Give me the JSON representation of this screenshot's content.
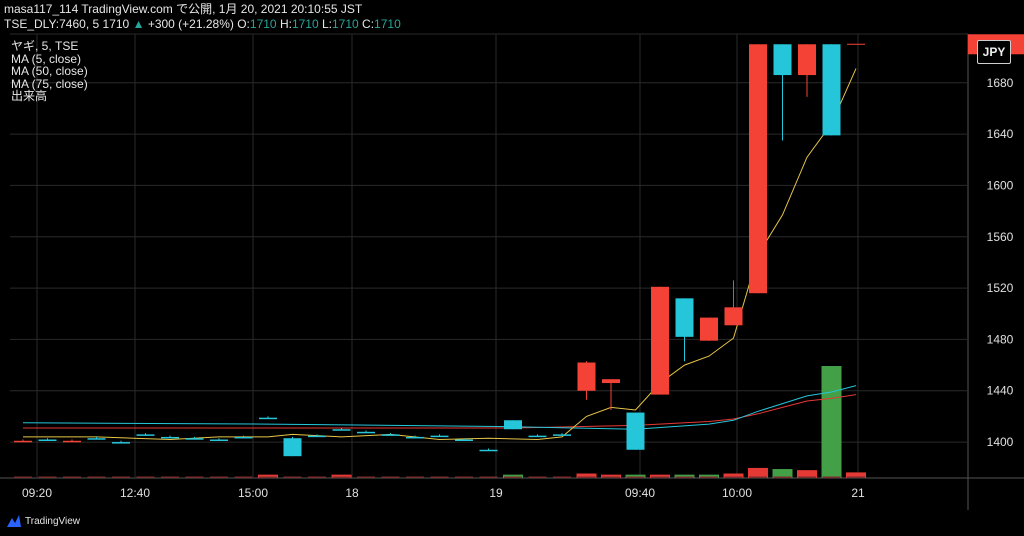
{
  "header": {
    "line1_user_site": "masa117_114 TradingView.com で公開, 1月 20, 2021 20:10:55 JST",
    "symbol_info": "TSE_DLY:7460, 5",
    "last_price": "1710",
    "change_text": "+300 (+21.28%)",
    "o_label": "O:",
    "o_value": "1710",
    "h_label": "H:",
    "h_value": "1710",
    "l_label": "L:",
    "l_value": "1710",
    "c_label": "C:",
    "c_value": "1710"
  },
  "legend": {
    "symbol_line": "ヤギ, 5, TSE",
    "ma5": "MA (5, close)",
    "ma50": "MA (50, close)",
    "ma75": "MA (75, close)",
    "volume": "出来高"
  },
  "currency_badge": "JPY",
  "footer_brand": "TradingView",
  "colors": {
    "up_candle": "#26c6da",
    "down_candle": "#f44336",
    "ma5": "#e8c547",
    "ma50": "#26c6da",
    "ma75": "#e53935",
    "volume_up": "#43a047",
    "volume_down": "#e53935",
    "grid": "#2a2a2a"
  },
  "chart_data": {
    "type": "candlestick",
    "ylim": [
      1372,
      1718
    ],
    "y_ticks": [
      1400,
      1440,
      1480,
      1520,
      1560,
      1600,
      1640,
      1680
    ],
    "x_tick_labels": [
      "09:20",
      "12:40",
      "15:00",
      "18",
      "19",
      "09:40",
      "10:00",
      "21"
    ],
    "candles": [
      {
        "t": 0,
        "o": 1401,
        "h": 1402,
        "l": 1400,
        "c": 1400
      },
      {
        "t": 1,
        "o": 1402,
        "h": 1403,
        "l": 1401,
        "c": 1402
      },
      {
        "t": 2,
        "o": 1401,
        "h": 1402,
        "l": 1400,
        "c": 1400
      },
      {
        "t": 3,
        "o": 1403,
        "h": 1404,
        "l": 1402,
        "c": 1403
      },
      {
        "t": 4,
        "o": 1400,
        "h": 1401,
        "l": 1399,
        "c": 1400
      },
      {
        "t": 5,
        "o": 1406,
        "h": 1407,
        "l": 1405,
        "c": 1406
      },
      {
        "t": 6,
        "o": 1404,
        "h": 1405,
        "l": 1403,
        "c": 1404
      },
      {
        "t": 7,
        "o": 1403,
        "h": 1404,
        "l": 1402,
        "c": 1403
      },
      {
        "t": 8,
        "o": 1402,
        "h": 1403,
        "l": 1401,
        "c": 1402
      },
      {
        "t": 9,
        "o": 1404,
        "h": 1405,
        "l": 1403,
        "c": 1404
      },
      {
        "t": 10,
        "o": 1419,
        "h": 1420,
        "l": 1418,
        "c": 1419
      },
      {
        "t": 11,
        "o": 1389,
        "h": 1404,
        "l": 1389,
        "c": 1403
      },
      {
        "t": 12,
        "o": 1405,
        "h": 1406,
        "l": 1404,
        "c": 1405
      },
      {
        "t": 13,
        "o": 1410,
        "h": 1411,
        "l": 1409,
        "c": 1410
      },
      {
        "t": 14,
        "o": 1408,
        "h": 1409,
        "l": 1407,
        "c": 1408
      },
      {
        "t": 15,
        "o": 1406,
        "h": 1407,
        "l": 1405,
        "c": 1406
      },
      {
        "t": 16,
        "o": 1404,
        "h": 1405,
        "l": 1403,
        "c": 1404
      },
      {
        "t": 17,
        "o": 1405,
        "h": 1406,
        "l": 1404,
        "c": 1405
      },
      {
        "t": 18,
        "o": 1402,
        "h": 1403,
        "l": 1401,
        "c": 1402
      },
      {
        "t": 19,
        "o": 1394,
        "h": 1395,
        "l": 1393,
        "c": 1394
      },
      {
        "t": 20,
        "o": 1410,
        "h": 1417,
        "l": 1410,
        "c": 1417
      },
      {
        "t": 21,
        "o": 1405,
        "h": 1406,
        "l": 1404,
        "c": 1405
      },
      {
        "t": 22,
        "o": 1406,
        "h": 1407,
        "l": 1405,
        "c": 1406
      },
      {
        "t": 23,
        "o": 1462,
        "h": 1463,
        "l": 1433,
        "c": 1440
      },
      {
        "t": 24,
        "o": 1449,
        "h": 1449,
        "l": 1425,
        "c": 1446
      },
      {
        "t": 25,
        "o": 1394,
        "h": 1423,
        "l": 1394,
        "c": 1423
      },
      {
        "t": 26,
        "o": 1521,
        "h": 1521,
        "l": 1437,
        "c": 1437
      },
      {
        "t": 27,
        "o": 1482,
        "h": 1512,
        "l": 1463,
        "c": 1512
      },
      {
        "t": 28,
        "o": 1497,
        "h": 1497,
        "l": 1479,
        "c": 1479
      },
      {
        "t": 29,
        "o": 1505,
        "h": 1526,
        "l": 1491,
        "c": 1491
      },
      {
        "t": 30,
        "o": 1710,
        "h": 1710,
        "l": 1516,
        "c": 1516
      },
      {
        "t": 31,
        "o": 1686,
        "h": 1710,
        "l": 1635,
        "c": 1710
      },
      {
        "t": 32,
        "o": 1710,
        "h": 1710,
        "l": 1669,
        "c": 1686
      },
      {
        "t": 33,
        "o": 1639,
        "h": 1710,
        "l": 1639,
        "c": 1710
      }
    ],
    "ma5_points": [
      [
        0,
        1404
      ],
      [
        3,
        1404
      ],
      [
        6,
        1402
      ],
      [
        8,
        1404
      ],
      [
        10,
        1404
      ],
      [
        11,
        1406
      ],
      [
        13,
        1404
      ],
      [
        15,
        1406
      ],
      [
        17,
        1402
      ],
      [
        19,
        1403
      ],
      [
        21,
        1402
      ],
      [
        22,
        1404
      ],
      [
        23,
        1420
      ],
      [
        24,
        1427
      ],
      [
        25,
        1425
      ],
      [
        26,
        1446
      ],
      [
        27,
        1460
      ],
      [
        28,
        1467
      ],
      [
        29,
        1481
      ],
      [
        30,
        1546
      ],
      [
        31,
        1577
      ],
      [
        32,
        1622
      ],
      [
        33,
        1648
      ],
      [
        34,
        1691
      ]
    ],
    "ma50_points": [
      [
        0,
        1415
      ],
      [
        10,
        1414
      ],
      [
        20,
        1412
      ],
      [
        25,
        1410
      ],
      [
        28,
        1414
      ],
      [
        29,
        1417
      ],
      [
        30,
        1424
      ],
      [
        31,
        1430
      ],
      [
        32,
        1436
      ],
      [
        33,
        1439
      ],
      [
        34,
        1444
      ]
    ],
    "ma75_points": [
      [
        0,
        1411
      ],
      [
        10,
        1411
      ],
      [
        20,
        1411
      ],
      [
        25,
        1413
      ],
      [
        28,
        1416
      ],
      [
        29,
        1418
      ],
      [
        30,
        1422
      ],
      [
        31,
        1427
      ],
      [
        32,
        1432
      ],
      [
        33,
        1434
      ],
      [
        34,
        1437
      ]
    ],
    "volume": [
      {
        "t": 10,
        "v": 0.03,
        "dir": "down"
      },
      {
        "t": 13,
        "v": 0.03,
        "dir": "down"
      },
      {
        "t": 20,
        "v": 0.03,
        "dir": "up"
      },
      {
        "t": 23,
        "v": 0.04,
        "dir": "down"
      },
      {
        "t": 24,
        "v": 0.03,
        "dir": "down"
      },
      {
        "t": 25,
        "v": 0.03,
        "dir": "up"
      },
      {
        "t": 26,
        "v": 0.03,
        "dir": "down"
      },
      {
        "t": 27,
        "v": 0.03,
        "dir": "up"
      },
      {
        "t": 28,
        "v": 0.03,
        "dir": "up"
      },
      {
        "t": 29,
        "v": 0.04,
        "dir": "down"
      },
      {
        "t": 30,
        "v": 0.09,
        "dir": "down"
      },
      {
        "t": 31,
        "v": 0.08,
        "dir": "up"
      },
      {
        "t": 32,
        "v": 0.07,
        "dir": "down"
      },
      {
        "t": 33,
        "v": 1.0,
        "dir": "up"
      },
      {
        "t": 34,
        "v": 0.05,
        "dir": "down"
      }
    ]
  }
}
